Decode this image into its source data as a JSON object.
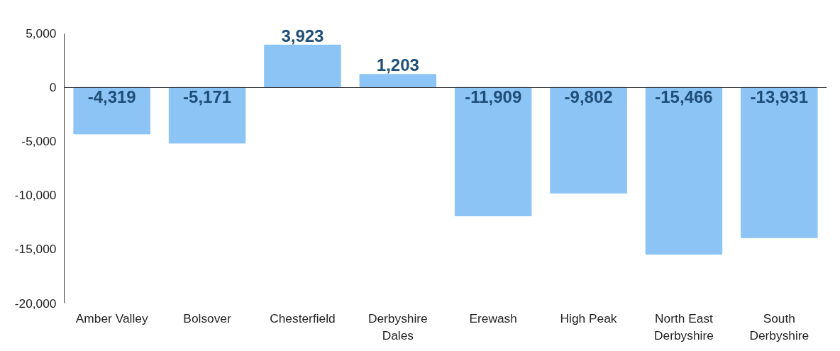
{
  "chart_data": {
    "type": "bar",
    "categories": [
      "Amber Valley",
      "Bolsover",
      "Chesterfield",
      "Derbyshire Dales",
      "Erewash",
      "High Peak",
      "North East Derbyshire",
      "South Derbyshire"
    ],
    "values": [
      -4319,
      -5171,
      3923,
      1203,
      -11909,
      -9802,
      -15466,
      -13931
    ],
    "color": "#8cc4f5",
    "ylim": [
      -20000,
      5000
    ],
    "yticks": [
      {
        "value": -20000,
        "label": "-20,000"
      },
      {
        "value": -15000,
        "label": "-15,000"
      },
      {
        "value": -10000,
        "label": "-10,000"
      },
      {
        "value": -5000,
        "label": "-5,000"
      },
      0,
      {
        "value": 5000,
        "label": "5,000"
      }
    ],
    "value_labels": [
      "-4,319",
      "-5,171",
      "3,923",
      "1,203",
      "-11,909",
      "-9,802",
      "-15,466",
      "-13,931"
    ]
  }
}
